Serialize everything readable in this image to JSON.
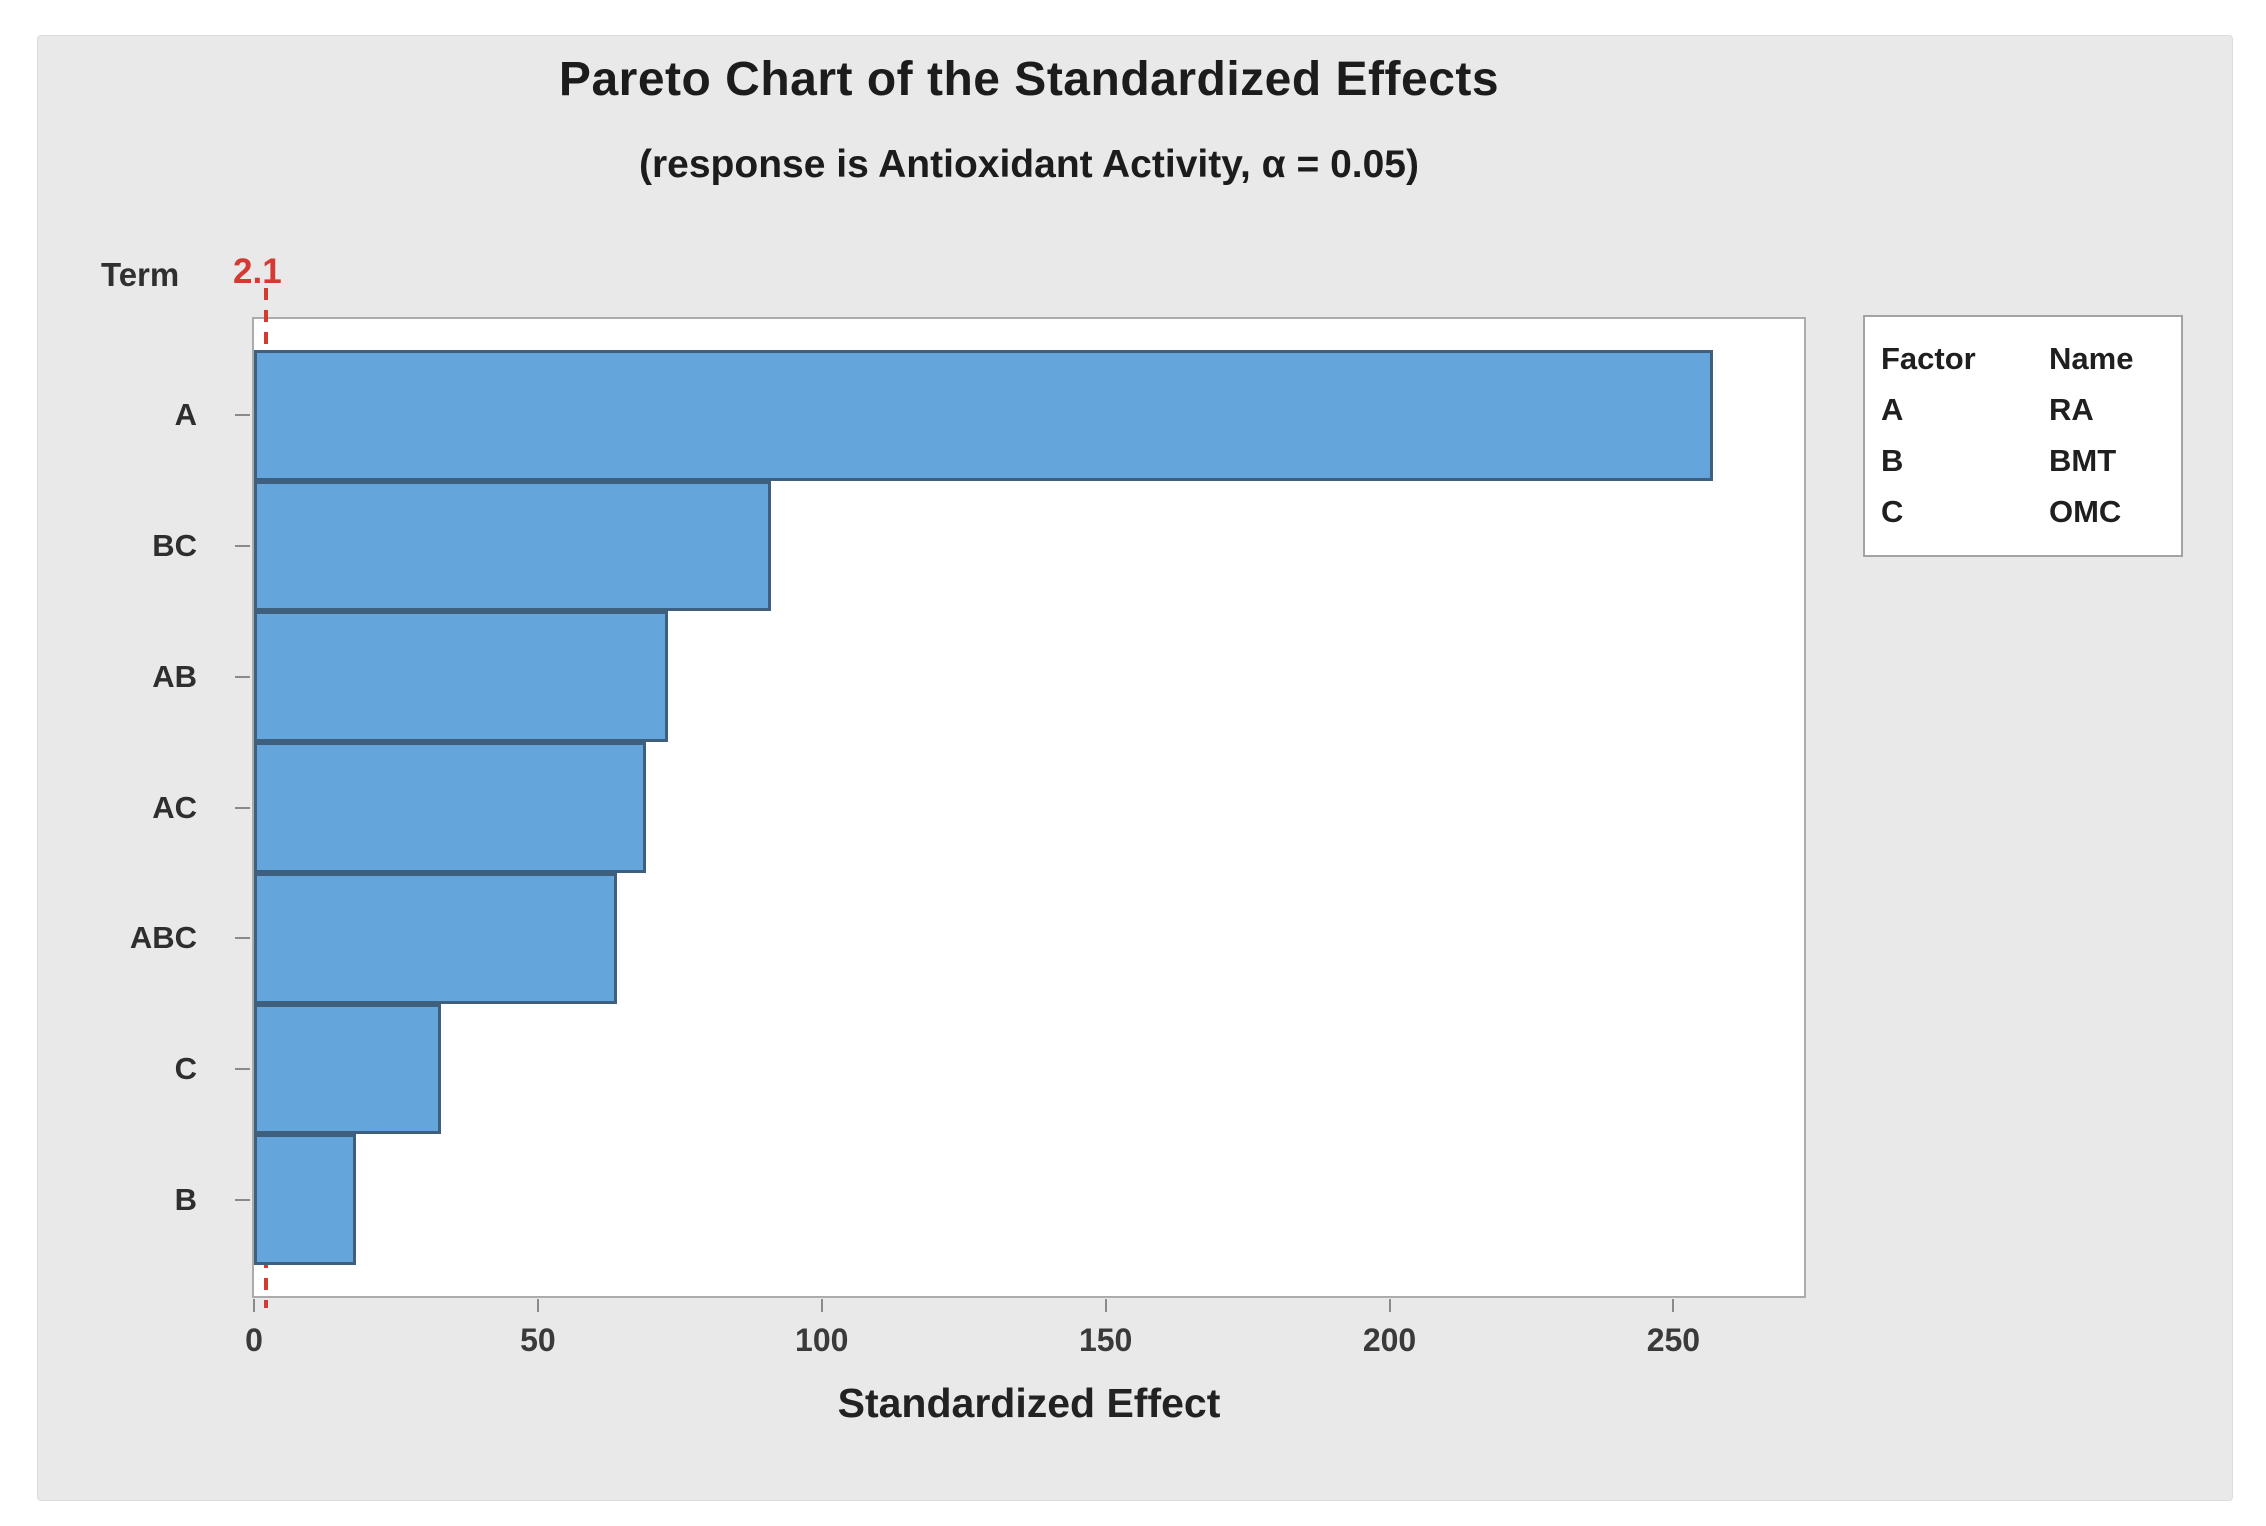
{
  "chart_data": {
    "type": "bar",
    "orientation": "horizontal",
    "title": "Pareto Chart of the Standardized Effects",
    "subtitle": "(response is Antioxidant Activity, α = 0.05)",
    "xlabel": "Standardized Effect",
    "ylabel": "Term",
    "categories": [
      "A",
      "BC",
      "AB",
      "AC",
      "ABC",
      "C",
      "B"
    ],
    "values": [
      257,
      91,
      73,
      69,
      64,
      33,
      18
    ],
    "xlim": [
      0,
      273
    ],
    "xticks": [
      0,
      50,
      100,
      150,
      200,
      250
    ],
    "grid": false,
    "reference_line": {
      "value": 2.1,
      "label": "2.1",
      "color": "#D43A31",
      "style": "dashed"
    },
    "legend": {
      "position": "right",
      "headers": [
        "Factor",
        "Name"
      ],
      "rows": [
        {
          "factor": "A",
          "name": "RA"
        },
        {
          "factor": "B",
          "name": "BMT"
        },
        {
          "factor": "C",
          "name": "OMC"
        }
      ]
    },
    "colors": {
      "bar_fill": "#64A5DB",
      "bar_border": "#3E5F7D",
      "region_background": "#E9E9E9",
      "plot_background": "#FFFFFF",
      "axis_line": "#ABABAB",
      "tick": "#8A8A8A",
      "reference": "#D43A31"
    }
  }
}
